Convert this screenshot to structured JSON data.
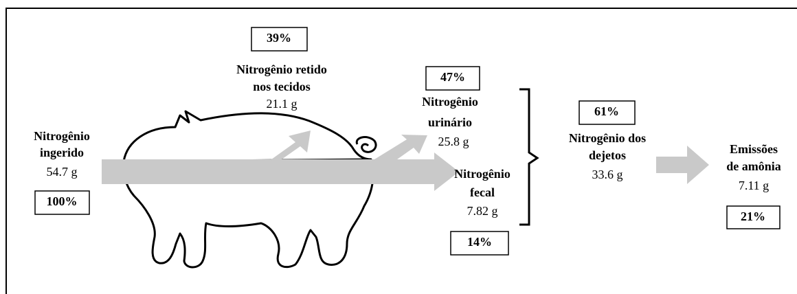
{
  "nodes": [
    {
      "label": [
        "Nitrogênio",
        "ingerido"
      ],
      "amount": "54.7 g",
      "percent": "100%"
    },
    {
      "label": [
        "Nitrogênio retido",
        "nos tecidos"
      ],
      "amount": "21.1 g",
      "percent": "39%"
    },
    {
      "label": [
        "Nitrogênio",
        "urinário"
      ],
      "amount": "25.8 g",
      "percent": "47%"
    },
    {
      "label": [
        "Nitrogênio",
        "fecal"
      ],
      "amount": "7.82 g",
      "percent": "14%"
    },
    {
      "label": [
        "Nitrogênio dos",
        "dejetos"
      ],
      "amount": "33.6 g",
      "percent": "61%"
    },
    {
      "label": [
        "Emissões",
        "de amônia"
      ],
      "amount": "7.11 g",
      "percent": "21%"
    }
  ]
}
